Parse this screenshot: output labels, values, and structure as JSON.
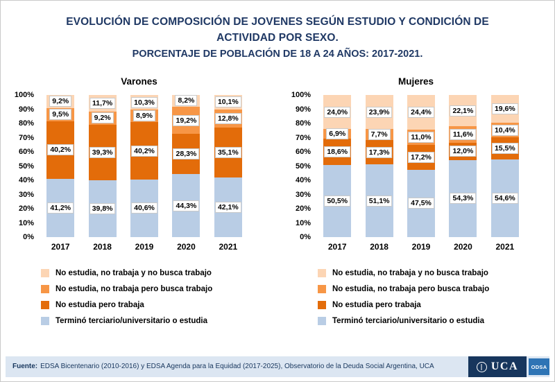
{
  "header": {
    "title_line1": "EVOLUCIÓN DE COMPOSICIÓN DE JOVENES SEGÚN ESTUDIO Y CONDICIÓN DE",
    "title_line2": "ACTIVIDAD POR SEXO.",
    "subtitle": "PORCENTAJE DE POBLACIÓN DE 18 A 24 AÑOS: 2017-2021.",
    "accent_color": "#1f3864"
  },
  "legend": {
    "items": [
      {
        "label": "No estudia, no trabaja y no busca trabajo",
        "color": "#fcd5b4"
      },
      {
        "label": "No estudia, no trabaja pero busca trabajo",
        "color": "#f79646"
      },
      {
        "label": "No estudia pero trabaja",
        "color": "#e36c0a"
      },
      {
        "label": "Terminó terciario/universitario o estudia",
        "color": "#b9cde5"
      }
    ]
  },
  "chart_data": [
    {
      "type": "bar",
      "stacked": true,
      "title": "Varones",
      "categories": [
        "2017",
        "2018",
        "2019",
        "2020",
        "2021"
      ],
      "series": [
        {
          "name": "Terminó terciario/universitario o estudia",
          "color": "#b9cde5",
          "values": [
            41.2,
            39.8,
            40.6,
            44.3,
            42.1
          ]
        },
        {
          "name": "No estudia pero trabaja",
          "color": "#e36c0a",
          "values": [
            40.2,
            39.3,
            40.2,
            28.3,
            35.1
          ]
        },
        {
          "name": "No estudia, no trabaja pero busca trabajo",
          "color": "#f79646",
          "values": [
            9.5,
            9.2,
            8.9,
            19.2,
            12.8
          ]
        },
        {
          "name": "No estudia, no trabaja y no busca trabajo",
          "color": "#fcd5b4",
          "values": [
            9.2,
            11.7,
            10.3,
            8.2,
            10.1
          ]
        }
      ],
      "yticks": [
        "0%",
        "10%",
        "20%",
        "30%",
        "40%",
        "50%",
        "60%",
        "70%",
        "80%",
        "90%",
        "100%"
      ],
      "ylim": [
        0,
        100
      ],
      "value_format": "percent-decimal-comma",
      "gridlines": false,
      "legend_position": "bottom-left"
    },
    {
      "type": "bar",
      "stacked": true,
      "title": "Mujeres",
      "categories": [
        "2017",
        "2018",
        "2019",
        "2020",
        "2021"
      ],
      "series": [
        {
          "name": "Terminó terciario/universitario o estudia",
          "color": "#b9cde5",
          "values": [
            50.5,
            51.1,
            47.5,
            54.3,
            54.6
          ]
        },
        {
          "name": "No estudia pero trabaja",
          "color": "#e36c0a",
          "values": [
            18.6,
            17.3,
            17.2,
            12.0,
            15.5
          ]
        },
        {
          "name": "No estudia, no trabaja pero busca trabajo",
          "color": "#f79646",
          "values": [
            6.9,
            7.7,
            11.0,
            11.6,
            10.4
          ]
        },
        {
          "name": "No estudia, no trabaja y no busca trabajo",
          "color": "#fcd5b4",
          "values": [
            24.0,
            23.9,
            24.4,
            22.1,
            19.6
          ]
        }
      ],
      "yticks": [
        "0%",
        "10%",
        "20%",
        "30%",
        "40%",
        "50%",
        "60%",
        "70%",
        "80%",
        "90%",
        "100%"
      ],
      "ylim": [
        0,
        100
      ],
      "value_format": "percent-decimal-comma",
      "gridlines": false,
      "legend_position": "bottom-left"
    }
  ],
  "footer": {
    "source_label": "Fuente:",
    "source_text": "EDSA Bicentenario (2010-2016) y EDSA Agenda para la Equidad (2017-2025), Observatorio de la Deuda Social Argentina, UCA",
    "logo_uca": "UCA",
    "logo_odsa": "ODSA",
    "band_color": "#dce6f2"
  }
}
